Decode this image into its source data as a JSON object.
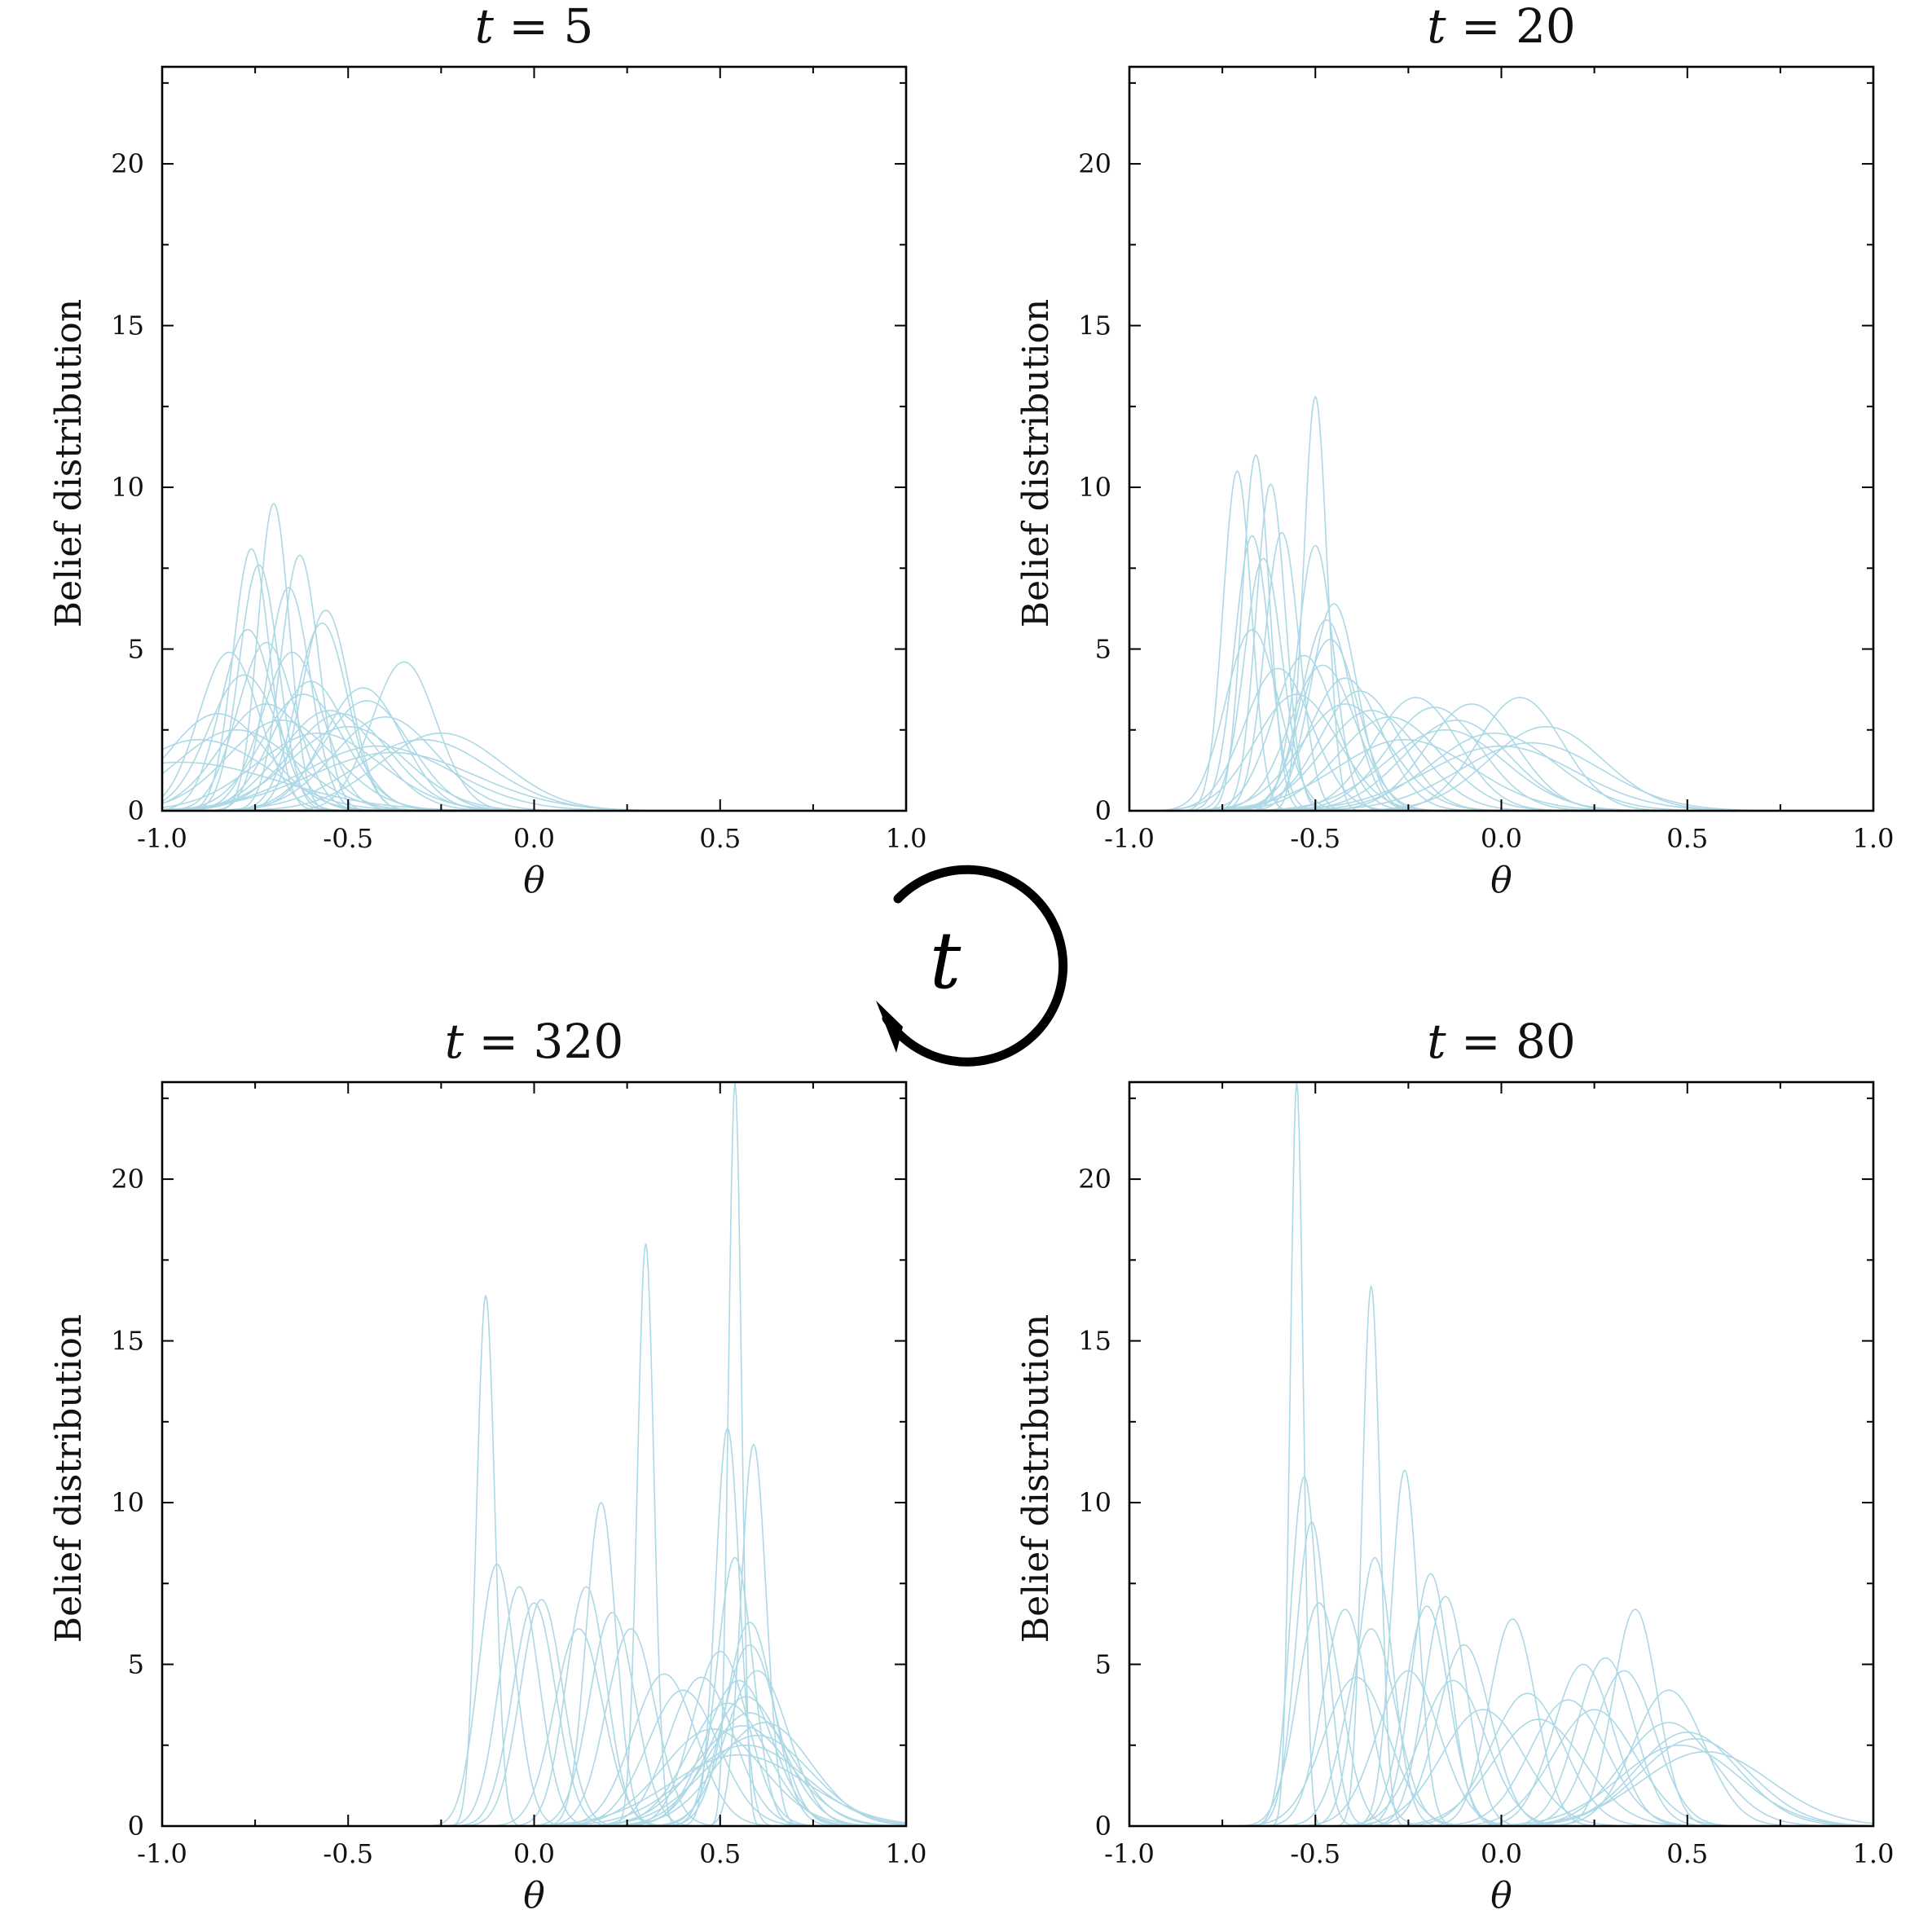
{
  "cycle_label": "t",
  "chart_data": [
    {
      "type": "line",
      "title": "t = 5",
      "title_parts": {
        "var": "t",
        "rest": " = 5"
      },
      "xlabel": "θ",
      "ylabel": "Belief distribution",
      "xlim": [
        -1.0,
        1.0
      ],
      "ylim": [
        0,
        23
      ],
      "xticks": [
        "-1.0",
        "-0.5",
        "0.0",
        "0.5",
        "1.0"
      ],
      "yticks": [
        "0",
        "5",
        "10",
        "15",
        "20"
      ],
      "color": "#add8e6",
      "series": [
        {
          "mu": -0.82,
          "peak": 4.9
        },
        {
          "mu": -0.76,
          "peak": 8.1
        },
        {
          "mu": -0.7,
          "peak": 9.5
        },
        {
          "mu": -0.74,
          "peak": 7.6
        },
        {
          "mu": -0.63,
          "peak": 7.9
        },
        {
          "mu": -0.66,
          "peak": 6.9
        },
        {
          "mu": -0.56,
          "peak": 6.2
        },
        {
          "mu": -0.57,
          "peak": 5.8
        },
        {
          "mu": -0.77,
          "peak": 5.6
        },
        {
          "mu": -0.78,
          "peak": 4.2
        },
        {
          "mu": -0.65,
          "peak": 4.9
        },
        {
          "mu": -0.6,
          "peak": 4.0
        },
        {
          "mu": -0.35,
          "peak": 4.6
        },
        {
          "mu": -0.46,
          "peak": 3.8
        },
        {
          "mu": -0.45,
          "peak": 3.4
        },
        {
          "mu": -0.4,
          "peak": 2.9
        },
        {
          "mu": -0.3,
          "peak": 2.2
        },
        {
          "mu": -0.25,
          "peak": 2.4
        },
        {
          "mu": -0.5,
          "peak": 2.6
        },
        {
          "mu": -0.72,
          "peak": 3.3
        },
        {
          "mu": -0.85,
          "peak": 3.0
        },
        {
          "mu": -0.68,
          "peak": 2.8
        },
        {
          "mu": -0.55,
          "peak": 3.1
        },
        {
          "mu": -0.62,
          "peak": 3.6
        },
        {
          "mu": -0.8,
          "peak": 2.5
        },
        {
          "mu": -0.42,
          "peak": 2.0
        },
        {
          "mu": -0.9,
          "peak": 2.2
        },
        {
          "mu": -0.72,
          "peak": 5.2
        },
        {
          "mu": -0.52,
          "peak": 3.0
        },
        {
          "mu": -0.58,
          "peak": 2.4
        },
        {
          "mu": -0.95,
          "peak": 1.5
        },
        {
          "mu": -0.38,
          "peak": 1.8
        }
      ]
    },
    {
      "type": "line",
      "title": "t = 20",
      "title_parts": {
        "var": "t",
        "rest": " = 20"
      },
      "xlabel": "θ",
      "ylabel": "Belief distribution",
      "xlim": [
        -1.0,
        1.0
      ],
      "ylim": [
        0,
        23
      ],
      "xticks": [
        "-1.0",
        "-0.5",
        "0.0",
        "0.5",
        "1.0"
      ],
      "yticks": [
        "0",
        "5",
        "10",
        "15",
        "20"
      ],
      "color": "#add8e6",
      "series": [
        {
          "mu": -0.71,
          "peak": 10.5
        },
        {
          "mu": -0.66,
          "peak": 11.0
        },
        {
          "mu": -0.62,
          "peak": 10.1
        },
        {
          "mu": -0.5,
          "peak": 12.8
        },
        {
          "mu": -0.59,
          "peak": 8.6
        },
        {
          "mu": -0.67,
          "peak": 8.5
        },
        {
          "mu": -0.5,
          "peak": 8.2
        },
        {
          "mu": -0.64,
          "peak": 7.8
        },
        {
          "mu": -0.45,
          "peak": 6.4
        },
        {
          "mu": -0.67,
          "peak": 5.6
        },
        {
          "mu": -0.47,
          "peak": 5.9
        },
        {
          "mu": -0.46,
          "peak": 5.3
        },
        {
          "mu": -0.53,
          "peak": 4.8
        },
        {
          "mu": -0.42,
          "peak": 4.1
        },
        {
          "mu": -0.38,
          "peak": 3.7
        },
        {
          "mu": -0.23,
          "peak": 3.5
        },
        {
          "mu": -0.18,
          "peak": 3.2
        },
        {
          "mu": -0.08,
          "peak": 3.3
        },
        {
          "mu": 0.05,
          "peak": 3.5
        },
        {
          "mu": 0.12,
          "peak": 2.6
        },
        {
          "mu": 0.08,
          "peak": 2.1
        },
        {
          "mu": -0.12,
          "peak": 2.8
        },
        {
          "mu": -0.3,
          "peak": 2.9
        },
        {
          "mu": -0.35,
          "peak": 3.1
        },
        {
          "mu": -0.02,
          "peak": 2.4
        },
        {
          "mu": -0.55,
          "peak": 3.6
        },
        {
          "mu": -0.6,
          "peak": 4.4
        },
        {
          "mu": -0.42,
          "peak": 3.3
        },
        {
          "mu": -0.26,
          "peak": 2.2
        },
        {
          "mu": 0.0,
          "peak": 2.0
        },
        {
          "mu": -0.15,
          "peak": 2.5
        },
        {
          "mu": -0.48,
          "peak": 4.5
        }
      ]
    },
    {
      "type": "line",
      "title": "t = 320",
      "title_parts": {
        "var": "t",
        "rest": " = 320"
      },
      "xlabel": "θ",
      "ylabel": "Belief distribution",
      "xlim": [
        -1.0,
        1.0
      ],
      "ylim": [
        0,
        23
      ],
      "xticks": [
        "-1.0",
        "-0.5",
        "0.0",
        "0.5",
        "1.0"
      ],
      "yticks": [
        "0",
        "5",
        "10",
        "15",
        "20"
      ],
      "color": "#add8e6",
      "series": [
        {
          "mu": -0.13,
          "peak": 16.4
        },
        {
          "mu": -0.1,
          "peak": 8.1
        },
        {
          "mu": -0.04,
          "peak": 7.4
        },
        {
          "mu": 0.0,
          "peak": 6.9
        },
        {
          "mu": 0.02,
          "peak": 7.0
        },
        {
          "mu": 0.14,
          "peak": 7.4
        },
        {
          "mu": 0.18,
          "peak": 10.0
        },
        {
          "mu": 0.3,
          "peak": 18.0
        },
        {
          "mu": 0.21,
          "peak": 6.6
        },
        {
          "mu": 0.26,
          "peak": 6.1
        },
        {
          "mu": 0.54,
          "peak": 23.0
        },
        {
          "mu": 0.52,
          "peak": 12.3
        },
        {
          "mu": 0.59,
          "peak": 11.8
        },
        {
          "mu": 0.54,
          "peak": 8.3
        },
        {
          "mu": 0.58,
          "peak": 6.3
        },
        {
          "mu": 0.58,
          "peak": 5.6
        },
        {
          "mu": 0.35,
          "peak": 4.7
        },
        {
          "mu": 0.45,
          "peak": 4.6
        },
        {
          "mu": 0.5,
          "peak": 5.4
        },
        {
          "mu": 0.55,
          "peak": 4.5
        },
        {
          "mu": 0.57,
          "peak": 4.0
        },
        {
          "mu": 0.58,
          "peak": 3.5
        },
        {
          "mu": 0.56,
          "peak": 3.1
        },
        {
          "mu": 0.6,
          "peak": 2.8
        },
        {
          "mu": 0.57,
          "peak": 2.5
        },
        {
          "mu": 0.55,
          "peak": 2.2
        },
        {
          "mu": 0.62,
          "peak": 3.2
        },
        {
          "mu": 0.52,
          "peak": 3.8
        },
        {
          "mu": 0.4,
          "peak": 4.2
        },
        {
          "mu": 0.48,
          "peak": 3.0
        },
        {
          "mu": 0.6,
          "peak": 4.8
        },
        {
          "mu": 0.12,
          "peak": 6.1
        }
      ]
    },
    {
      "type": "line",
      "title": "t = 80",
      "title_parts": {
        "var": "t",
        "rest": " = 80"
      },
      "xlabel": "θ",
      "ylabel": "Belief distribution",
      "xlim": [
        -1.0,
        1.0
      ],
      "ylim": [
        0,
        23
      ],
      "xticks": [
        "-1.0",
        "-0.5",
        "0.0",
        "0.5",
        "1.0"
      ],
      "yticks": [
        "0",
        "5",
        "10",
        "15",
        "20"
      ],
      "color": "#add8e6",
      "series": [
        {
          "mu": -0.55,
          "peak": 23.0
        },
        {
          "mu": -0.53,
          "peak": 10.8
        },
        {
          "mu": -0.51,
          "peak": 9.4
        },
        {
          "mu": -0.35,
          "peak": 16.7
        },
        {
          "mu": -0.34,
          "peak": 8.3
        },
        {
          "mu": -0.26,
          "peak": 11.0
        },
        {
          "mu": -0.19,
          "peak": 7.8
        },
        {
          "mu": -0.15,
          "peak": 7.1
        },
        {
          "mu": -0.2,
          "peak": 6.8
        },
        {
          "mu": -0.49,
          "peak": 6.9
        },
        {
          "mu": -0.42,
          "peak": 6.7
        },
        {
          "mu": -0.35,
          "peak": 6.1
        },
        {
          "mu": -0.1,
          "peak": 5.6
        },
        {
          "mu": 0.03,
          "peak": 6.4
        },
        {
          "mu": 0.36,
          "peak": 6.7
        },
        {
          "mu": 0.28,
          "peak": 5.2
        },
        {
          "mu": 0.22,
          "peak": 5.0
        },
        {
          "mu": 0.33,
          "peak": 4.8
        },
        {
          "mu": 0.45,
          "peak": 4.2
        },
        {
          "mu": -0.13,
          "peak": 4.5
        },
        {
          "mu": -0.25,
          "peak": 4.8
        },
        {
          "mu": -0.39,
          "peak": 4.6
        },
        {
          "mu": 0.07,
          "peak": 4.1
        },
        {
          "mu": 0.18,
          "peak": 3.9
        },
        {
          "mu": 0.5,
          "peak": 2.9
        },
        {
          "mu": 0.52,
          "peak": 2.7
        },
        {
          "mu": 0.48,
          "peak": 2.5
        },
        {
          "mu": 0.55,
          "peak": 2.3
        },
        {
          "mu": 0.45,
          "peak": 3.2
        },
        {
          "mu": -0.05,
          "peak": 3.6
        },
        {
          "mu": 0.1,
          "peak": 3.3
        },
        {
          "mu": 0.25,
          "peak": 3.6
        }
      ]
    }
  ]
}
